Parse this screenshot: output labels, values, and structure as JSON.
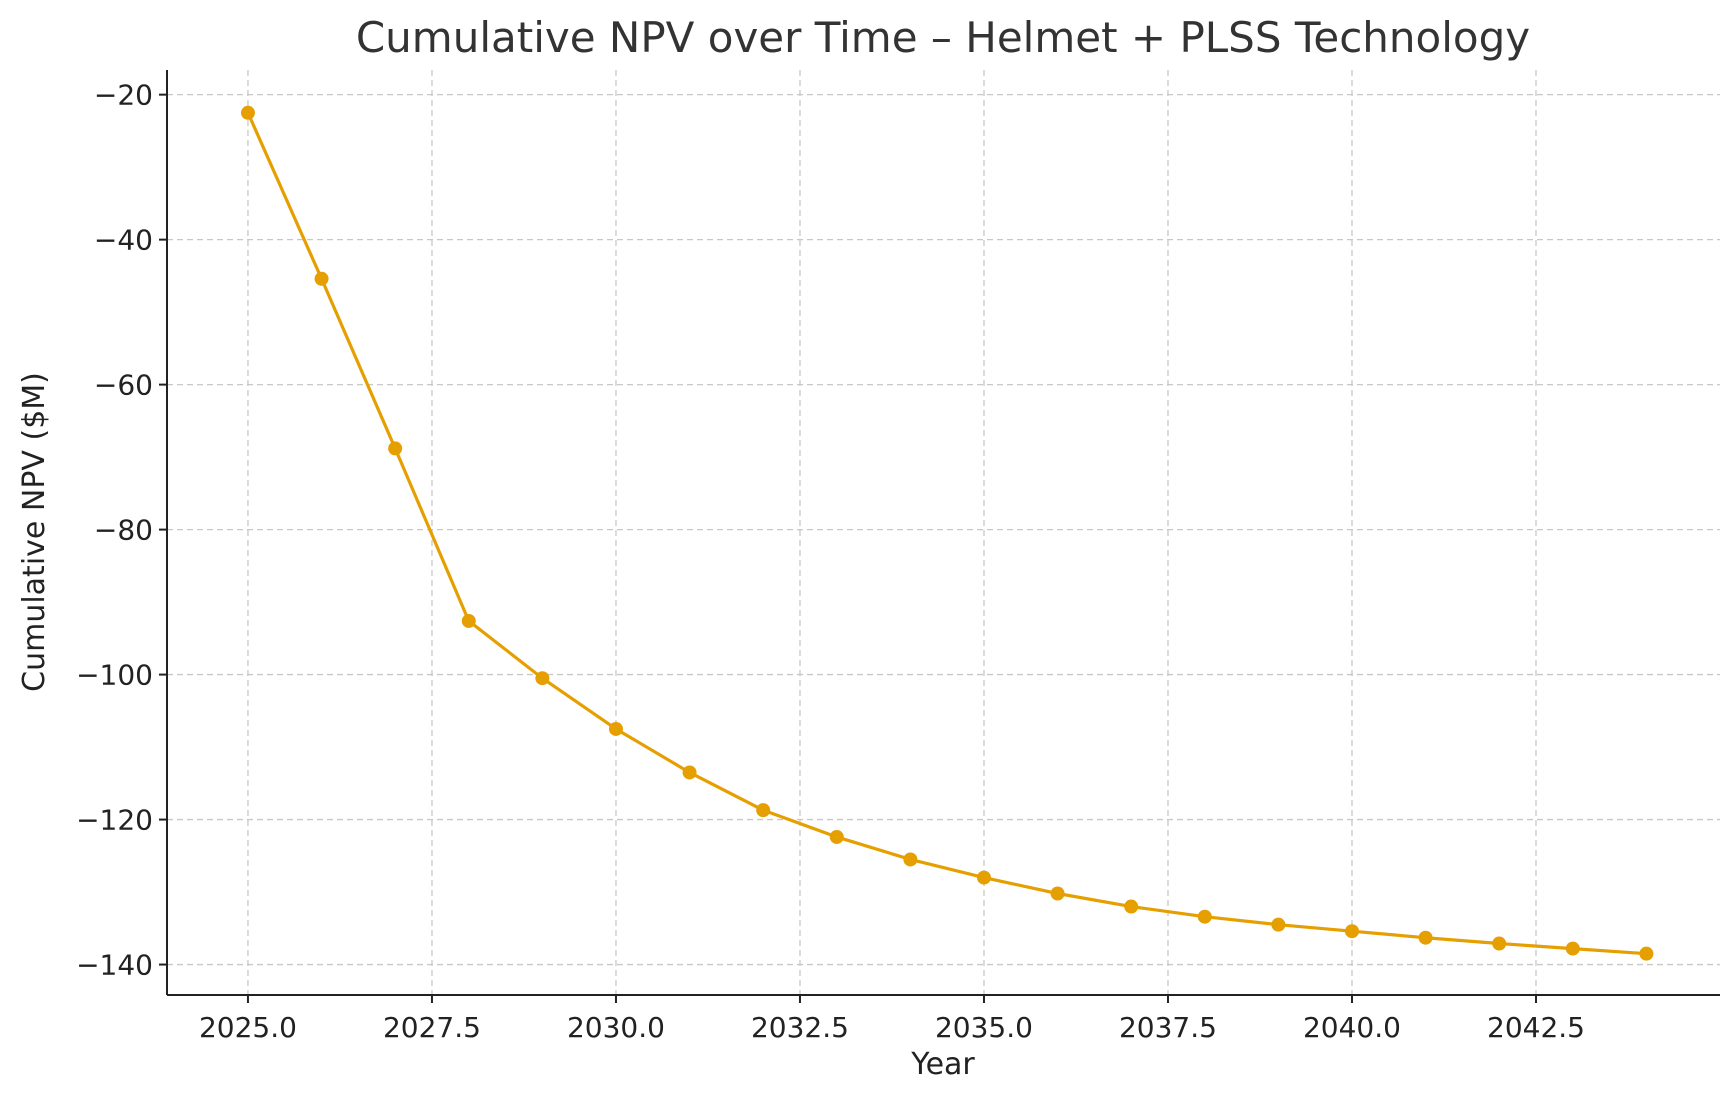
{
  "chart_data": {
    "type": "line",
    "title": "Cumulative NPV over Time – Helmet + PLSS Technology",
    "xlabel": "Year",
    "ylabel": "Cumulative NPV ($M)",
    "xlim": [
      2023.9,
      2045.0
    ],
    "ylim": [
      -144.2,
      -16.6
    ],
    "x_ticks": [
      2025.0,
      2027.5,
      2030.0,
      2032.5,
      2035.0,
      2037.5,
      2040.0,
      2042.5
    ],
    "x_tick_labels": [
      "2025.0",
      "2027.5",
      "2030.0",
      "2032.5",
      "2035.0",
      "2037.5",
      "2040.0",
      "2042.5"
    ],
    "y_ticks": [
      -20,
      -40,
      -60,
      -80,
      -100,
      -120,
      -140
    ],
    "y_tick_labels": [
      "−20",
      "−40",
      "−60",
      "−80",
      "−100",
      "−120",
      "−140"
    ],
    "grid": true,
    "series": [
      {
        "color": "#E69F00",
        "marker": "circle",
        "x": [
          2025,
          2026,
          2027,
          2028,
          2029,
          2030,
          2031,
          2032,
          2033,
          2034,
          2035,
          2036,
          2037,
          2038,
          2039,
          2040,
          2041,
          2042,
          2043,
          2044
        ],
        "values": [
          -22.5,
          -45.4,
          -68.8,
          -92.6,
          -100.5,
          -107.5,
          -113.5,
          -118.7,
          -122.4,
          -125.5,
          -128.0,
          -130.2,
          -132.0,
          -133.4,
          -134.5,
          -135.4,
          -136.3,
          -137.1,
          -137.8,
          -138.5
        ]
      }
    ]
  }
}
